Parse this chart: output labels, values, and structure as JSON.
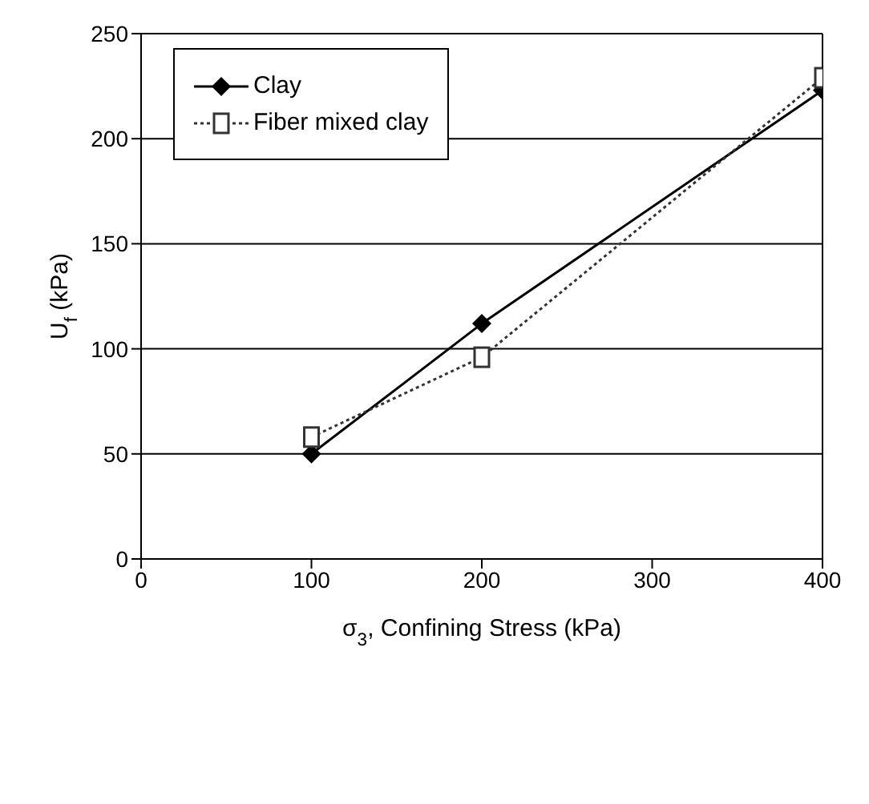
{
  "chart_data": {
    "type": "line",
    "xlabel": "σ$_{3}$, Confining Stress (kPa)",
    "ylabel": "U$_{f}$ (kPa)",
    "x": [
      100,
      200,
      400
    ],
    "series": [
      {
        "name": "Clay",
        "color": "#000000",
        "values": [
          50,
          112,
          223
        ],
        "marker": "diamond",
        "line_style": "solid"
      },
      {
        "name": "Fiber mixed clay",
        "color": "#333333",
        "values": [
          58,
          96,
          229
        ],
        "marker": "square",
        "line_style": "dotted"
      }
    ],
    "xlim": [
      0,
      400
    ],
    "xticks": [
      0,
      100,
      200,
      300,
      400
    ],
    "ylim": [
      0,
      250
    ],
    "yticks": [
      0,
      50,
      100,
      150,
      200,
      250
    ],
    "grid": "y",
    "legend": "top left"
  }
}
